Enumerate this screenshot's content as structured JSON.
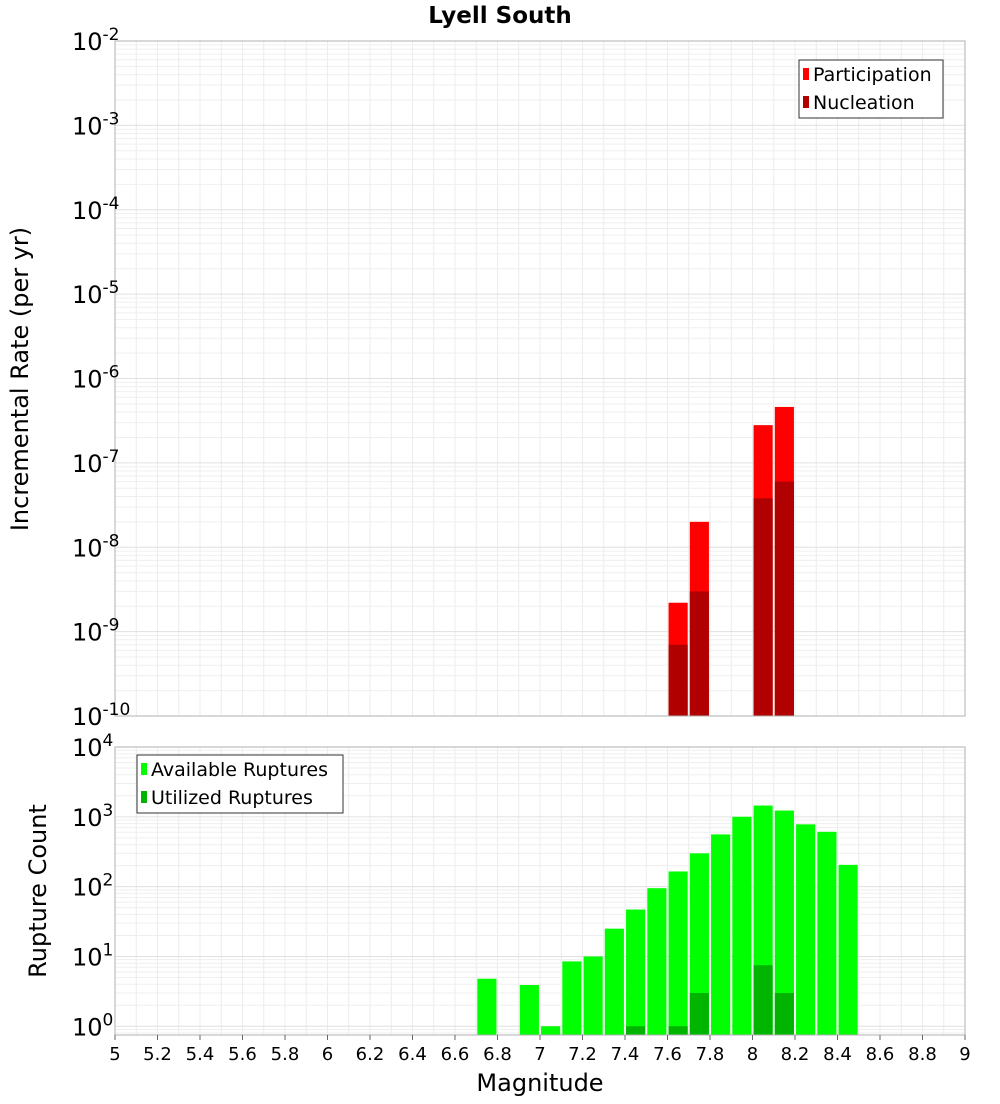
{
  "chart_data": [
    {
      "type": "bar",
      "title": "Lyell South",
      "ylabel": "Incremental Rate (per yr)",
      "xlabel": "",
      "scale_y": "log",
      "ylim": [
        1e-10,
        0.01
      ],
      "xlim": [
        5,
        9
      ],
      "yticks": [
        {
          "base": "10",
          "exp": "-2",
          "v": 0.01
        },
        {
          "base": "10",
          "exp": "-3",
          "v": 0.001
        },
        {
          "base": "10",
          "exp": "-4",
          "v": 0.0001
        },
        {
          "base": "10",
          "exp": "-5",
          "v": 1e-05
        },
        {
          "base": "10",
          "exp": "-6",
          "v": 1e-06
        },
        {
          "base": "10",
          "exp": "-7",
          "v": 1e-07
        },
        {
          "base": "10",
          "exp": "-8",
          "v": 1e-08
        },
        {
          "base": "10",
          "exp": "-9",
          "v": 1e-09
        },
        {
          "base": "10",
          "exp": "-10",
          "v": 1e-10
        }
      ],
      "grid": true,
      "legend_position": "top-right",
      "bar_width": 0.09,
      "series": [
        {
          "name": "Participation",
          "color": "#ff0000",
          "x": [
            7.65,
            7.75,
            8.05,
            8.15
          ],
          "values": [
            2.2e-09,
            2e-08,
            2.8e-07,
            4.6e-07
          ]
        },
        {
          "name": "Nucleation",
          "color": "#b00000",
          "x": [
            7.65,
            7.75,
            8.05,
            8.15
          ],
          "values": [
            7e-10,
            3e-09,
            3.8e-08,
            6e-08
          ]
        }
      ]
    },
    {
      "type": "bar",
      "title": "",
      "ylabel": "Rupture Count",
      "xlabel": "Magnitude",
      "scale_y": "log",
      "ylim": [
        0.75,
        10000
      ],
      "xlim": [
        5,
        9
      ],
      "yticks": [
        {
          "base": "10",
          "exp": "4",
          "v": 10000
        },
        {
          "base": "10",
          "exp": "3",
          "v": 1000
        },
        {
          "base": "10",
          "exp": "2",
          "v": 100
        },
        {
          "base": "10",
          "exp": "1",
          "v": 10
        },
        {
          "base": "10",
          "exp": "0",
          "v": 1
        }
      ],
      "xticks": [
        5,
        5.2,
        5.4,
        5.6,
        5.8,
        6,
        6.2,
        6.4,
        6.6,
        6.8,
        7,
        7.2,
        7.4,
        7.6,
        7.8,
        8,
        8.2,
        8.4,
        8.6,
        8.8,
        9
      ],
      "xtick_labels": [
        "5",
        "5.2",
        "5.4",
        "5.6",
        "5.8",
        "6",
        "6.2",
        "6.4",
        "6.6",
        "6.8",
        "7",
        "7.2",
        "7.4",
        "7.6",
        "7.8",
        "8",
        "8.2",
        "8.4",
        "8.6",
        "8.8",
        "9"
      ],
      "grid": true,
      "legend_position": "top-left",
      "bar_width": 0.09,
      "series": [
        {
          "name": "Available Ruptures",
          "color": "#00ff00",
          "x": [
            6.75,
            6.95,
            7.05,
            7.15,
            7.25,
            7.35,
            7.45,
            7.55,
            7.65,
            7.75,
            7.85,
            7.95,
            8.05,
            8.15,
            8.25,
            8.35,
            8.45
          ],
          "values": [
            4.8,
            3.9,
            1.0,
            8.5,
            10,
            25,
            47,
            95,
            165,
            300,
            560,
            1000,
            1450,
            1230,
            780,
            610,
            205
          ]
        },
        {
          "name": "Utilized Ruptures",
          "color": "#00b400",
          "x": [
            7.45,
            7.65,
            7.75,
            8.05,
            8.15
          ],
          "values": [
            1,
            1,
            3,
            7.5,
            3
          ]
        }
      ]
    }
  ]
}
